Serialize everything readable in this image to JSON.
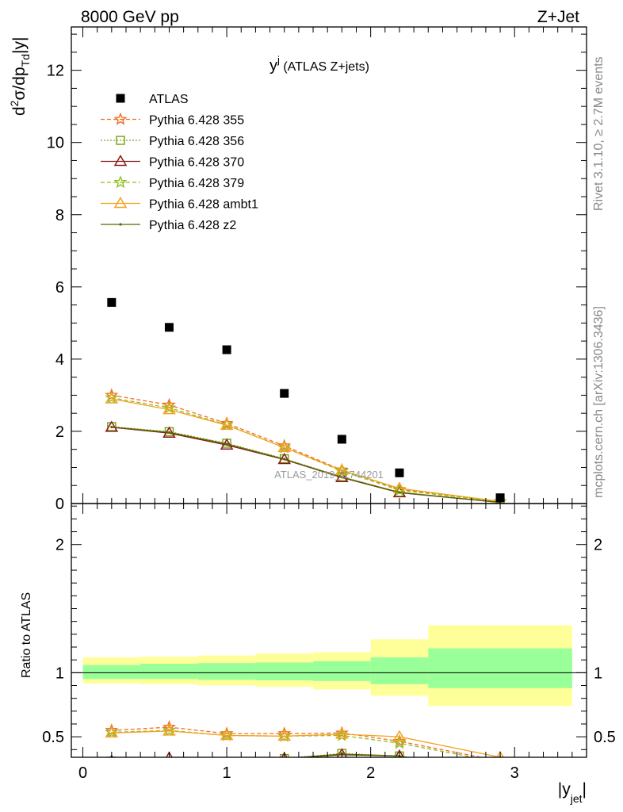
{
  "header": {
    "left": "8000 GeV pp",
    "right": "Z+Jet"
  },
  "side": {
    "rivet": "Rivet 3.1.10, ≥ 2.7M events",
    "mcplots": "mcplots.cern.ch [arXiv:1306.3436]"
  },
  "watermark": "ATLAS_2019_I1744201",
  "chart_data": {
    "type": "scatter",
    "title": {
      "main": "y",
      "sup": "j",
      "rest": " (ATLAS Z+jets)"
    },
    "upper": {
      "ylabel": {
        "lead": "d",
        "sup": "2",
        "mid": "σ/dp",
        "sub": "Td",
        "tail": "|y|"
      },
      "ylim": [
        0,
        13.2
      ],
      "xlim": [
        -0.08,
        3.5
      ],
      "yticks": [
        0,
        2,
        4,
        6,
        8,
        10,
        12
      ],
      "ytick_labels": [
        "0",
        "2",
        "4",
        "6",
        "8",
        "10",
        "12"
      ]
    },
    "lower": {
      "ylabel": "Ratio to ATLAS",
      "ylim": [
        0.34,
        2.32
      ],
      "yticks": [
        0.5,
        1,
        2
      ],
      "ytick_labels": [
        "0.5",
        "1",
        "2"
      ]
    },
    "xlabel": {
      "main": "|y",
      "sub": "jet",
      "tail": "|"
    },
    "xticks": [
      0,
      1,
      2,
      3
    ],
    "xtick_labels": [
      "0",
      "1",
      "2",
      "3"
    ],
    "bin_edges": [
      0.0,
      0.4,
      0.8,
      1.2,
      1.6,
      2.0,
      2.4,
      3.4
    ],
    "x": [
      0.2,
      0.6,
      1.0,
      1.4,
      1.8,
      2.2,
      2.9
    ],
    "band_green": [
      [
        0.95,
        1.06
      ],
      [
        0.95,
        1.07
      ],
      [
        0.945,
        1.075
      ],
      [
        0.94,
        1.08
      ],
      [
        0.935,
        1.09
      ],
      [
        0.91,
        1.12
      ],
      [
        0.88,
        1.19
      ]
    ],
    "band_yellow": [
      [
        0.915,
        1.12
      ],
      [
        0.91,
        1.125
      ],
      [
        0.9,
        1.135
      ],
      [
        0.89,
        1.15
      ],
      [
        0.87,
        1.16
      ],
      [
        0.82,
        1.26
      ],
      [
        0.74,
        1.37
      ]
    ],
    "data": {
      "name": "ATLAS",
      "values": [
        5.57,
        4.88,
        4.26,
        3.05,
        1.78,
        0.85,
        0.16
      ]
    },
    "series": [
      {
        "name": "Pythia 6.428 355",
        "color": "#f26f21",
        "dash": "5,3",
        "marker": "star",
        "values": [
          3.0,
          2.73,
          2.22,
          1.6,
          0.93,
          0.39,
          0.05
        ],
        "ratio": [
          0.55,
          0.575,
          0.525,
          0.525,
          0.53,
          0.465,
          0.31
        ]
      },
      {
        "name": "Pythia 6.428 356",
        "color": "#7fa51c",
        "dash": "2,2",
        "marker": "square",
        "values": [
          2.13,
          1.99,
          1.67,
          1.24,
          0.74,
          0.31,
          0.03
        ],
        "ratio": [
          0.31,
          0.27,
          0.28,
          0.33,
          0.37,
          0.35,
          0.2
        ]
      },
      {
        "name": "Pythia 6.428 370",
        "color": "#8b1a1a",
        "dash": "",
        "marker": "triangle",
        "values": [
          2.11,
          1.95,
          1.62,
          1.22,
          0.72,
          0.3,
          0.03
        ],
        "ratio": [
          0.31,
          0.335,
          0.28,
          0.33,
          0.36,
          0.35,
          0.2
        ]
      },
      {
        "name": "Pythia 6.428 379",
        "color": "#8fbf1f",
        "dash": "5,3",
        "marker": "star",
        "values": [
          2.93,
          2.65,
          2.18,
          1.55,
          0.9,
          0.37,
          0.05
        ],
        "ratio": [
          0.535,
          0.55,
          0.51,
          0.505,
          0.51,
          0.45,
          0.3
        ]
      },
      {
        "name": "Pythia 6.428 ambt1",
        "color": "#f5a11f",
        "dash": "",
        "marker": "triangle",
        "values": [
          2.9,
          2.6,
          2.17,
          1.55,
          0.92,
          0.42,
          0.06
        ],
        "ratio": [
          0.53,
          0.545,
          0.51,
          0.505,
          0.52,
          0.5,
          0.34
        ]
      },
      {
        "name": "Pythia 6.428 z2",
        "color": "#556b00",
        "dash": "",
        "marker": "dot",
        "values": [
          2.12,
          1.97,
          1.65,
          1.23,
          0.73,
          0.31,
          0.03
        ],
        "ratio": [
          0.31,
          0.29,
          0.28,
          0.33,
          0.365,
          0.35,
          0.2
        ]
      }
    ]
  }
}
